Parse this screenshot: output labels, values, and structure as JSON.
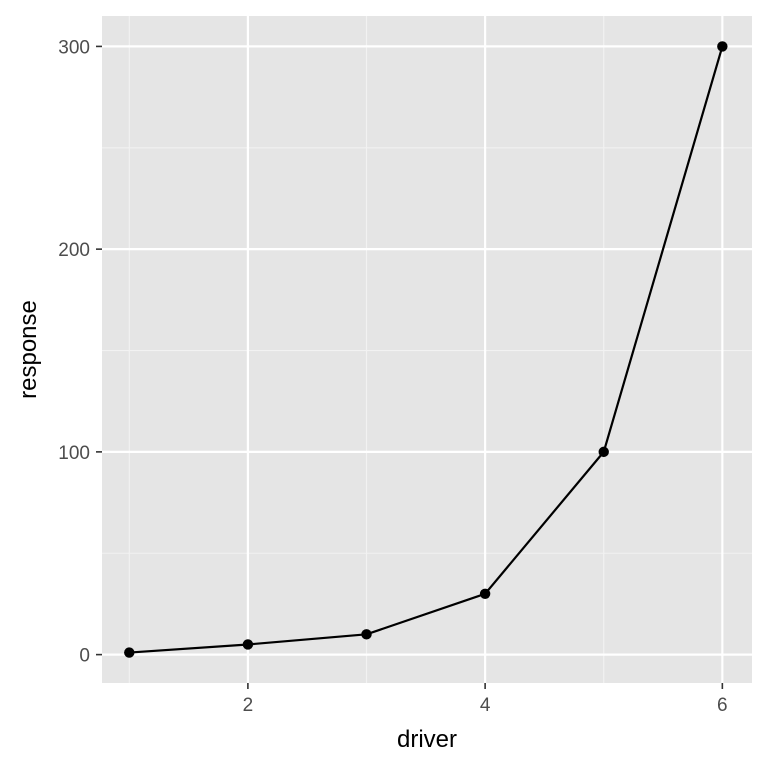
{
  "chart_data": {
    "type": "line",
    "title": "",
    "xlabel": "driver",
    "ylabel": "response",
    "x": [
      1,
      2,
      3,
      4,
      5,
      6
    ],
    "series": [
      {
        "values": [
          1,
          5,
          10,
          30,
          100,
          300
        ]
      }
    ],
    "xlim": [
      0.77,
      6.25
    ],
    "ylim": [
      -14,
      315
    ],
    "x_ticks": [
      2,
      4,
      6
    ],
    "x_tick_labels": [
      "2",
      "4",
      "6"
    ],
    "y_ticks": [
      0,
      100,
      200,
      300
    ],
    "y_tick_labels": [
      "0",
      "100",
      "200",
      "300"
    ],
    "x_minor_ticks": [
      1,
      3,
      5
    ],
    "y_minor_ticks": [
      50,
      150,
      250
    ],
    "grid": true,
    "legend": "none",
    "colors": {
      "panel_background": "#e5e5e5",
      "grid_major": "#ffffff",
      "grid_minor": "#f2f2f2",
      "line": "#000000",
      "point": "#000000",
      "tick_text": "#4d4d4d",
      "tick_mark": "#333333"
    }
  }
}
